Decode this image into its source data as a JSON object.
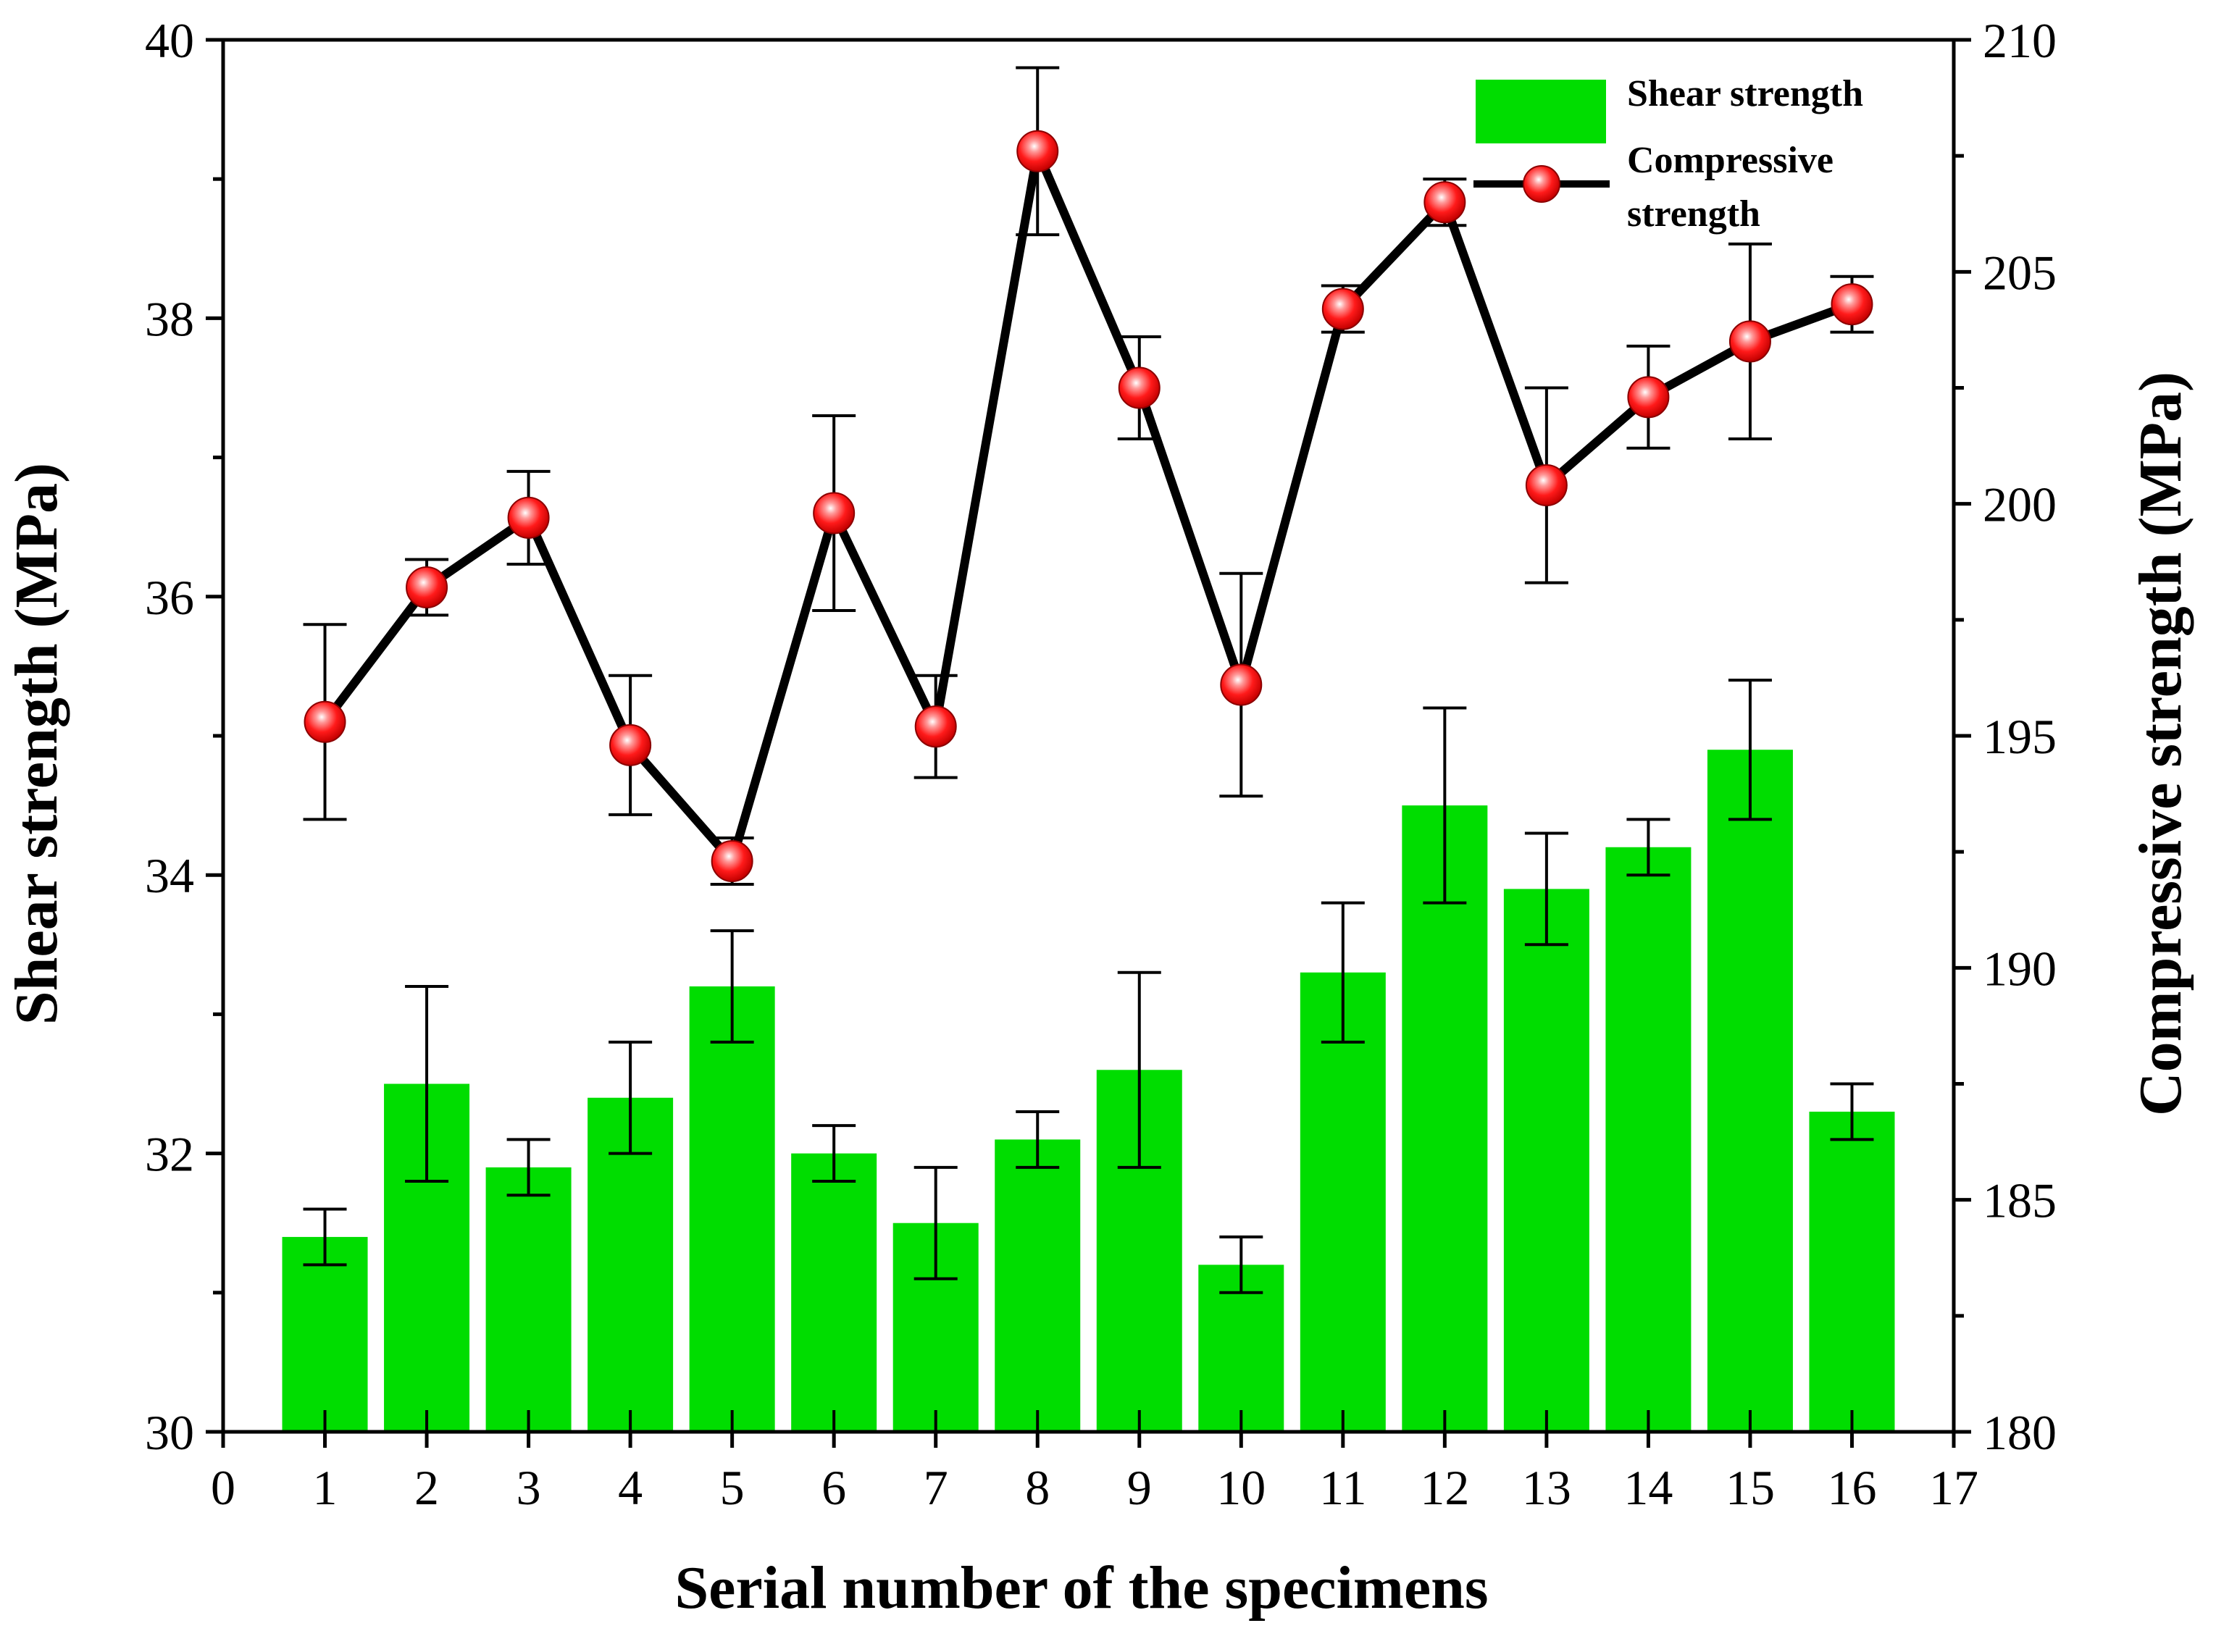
{
  "chart_data": {
    "type": "bar",
    "title": "",
    "xlabel": "Serial number of the specimens",
    "ylabel": "Shear strength (MPa)",
    "y2label": "Compressive strength (MPa)",
    "xlim": [
      0,
      17
    ],
    "ylim": [
      30,
      40
    ],
    "y2lim": [
      180,
      210
    ],
    "x_ticks": [
      0,
      1,
      2,
      3,
      4,
      5,
      6,
      7,
      8,
      9,
      10,
      11,
      12,
      13,
      14,
      15,
      16,
      17
    ],
    "y_ticks": [
      30,
      32,
      34,
      36,
      38,
      40
    ],
    "y2_ticks": [
      180,
      185,
      190,
      195,
      200,
      205,
      210
    ],
    "grid": false,
    "legend_position": "top-right",
    "categories": [
      1,
      2,
      3,
      4,
      5,
      6,
      7,
      8,
      9,
      10,
      11,
      12,
      13,
      14,
      15,
      16
    ],
    "series": [
      {
        "name": "Shear strength",
        "type": "bar",
        "axis": "left",
        "color": "#00dd00",
        "values": [
          31.4,
          32.5,
          31.9,
          32.4,
          33.2,
          32.0,
          31.5,
          32.1,
          32.6,
          31.2,
          33.3,
          34.5,
          33.9,
          34.2,
          34.9,
          32.3
        ],
        "errors": [
          0.2,
          0.7,
          0.2,
          0.4,
          0.4,
          0.2,
          0.4,
          0.2,
          0.7,
          0.2,
          0.5,
          0.7,
          0.4,
          0.2,
          0.5,
          0.2
        ]
      },
      {
        "name": "Compressive strength",
        "type": "line",
        "axis": "right",
        "line_color": "#000000",
        "marker_color": "#ee0000",
        "values": [
          195.3,
          198.2,
          199.7,
          194.8,
          192.3,
          199.8,
          195.2,
          207.6,
          202.5,
          196.1,
          204.2,
          206.5,
          200.4,
          202.3,
          203.5,
          204.3
        ],
        "errors": [
          2.1,
          0.6,
          1.0,
          1.5,
          0.5,
          2.1,
          1.1,
          1.8,
          1.1,
          2.4,
          0.5,
          0.5,
          2.1,
          1.1,
          2.1,
          0.6
        ]
      }
    ]
  }
}
